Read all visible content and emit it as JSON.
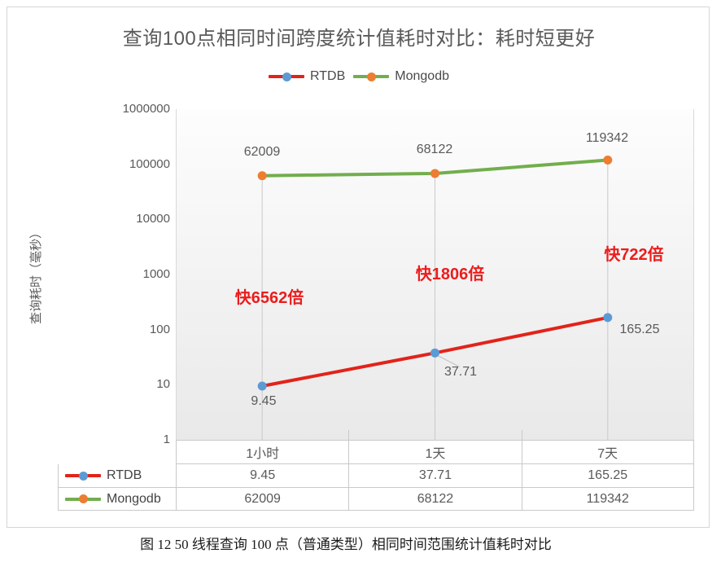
{
  "title": "查询100点相同时间跨度统计值耗时对比：耗时短更好",
  "caption": "图 12  50 线程查询 100 点（普通类型）相同时间范围统计值耗时对比",
  "colors": {
    "text": "#595959",
    "annotation": "#ed1c1c",
    "drop_line": "#c9c9c9",
    "border": "#d6d6d6"
  },
  "chart_data": {
    "type": "line",
    "x_categories": [
      "1小时",
      "1天",
      "7天"
    ],
    "series": [
      {
        "name": "RTDB",
        "values": [
          9.45,
          37.71,
          165.25
        ],
        "line_color": "#e2231a",
        "marker_color": "#5b9bd5"
      },
      {
        "name": "Mongodb",
        "values": [
          62009,
          68122,
          119342
        ],
        "line_color": "#72ae4d",
        "marker_color": "#ed7d31"
      }
    ],
    "annotations": [
      "快6562倍",
      "快1806倍",
      "快722倍"
    ],
    "y_axis": {
      "label": "查询耗时（毫秒）",
      "scale": "log",
      "range": [
        1,
        1000000
      ],
      "tick_labels": [
        "1000000",
        "100000",
        "10000",
        "1000",
        "100",
        "10",
        "1"
      ]
    },
    "legend_position": "top",
    "grid": false,
    "data_table": true,
    "drop_lines": true
  }
}
